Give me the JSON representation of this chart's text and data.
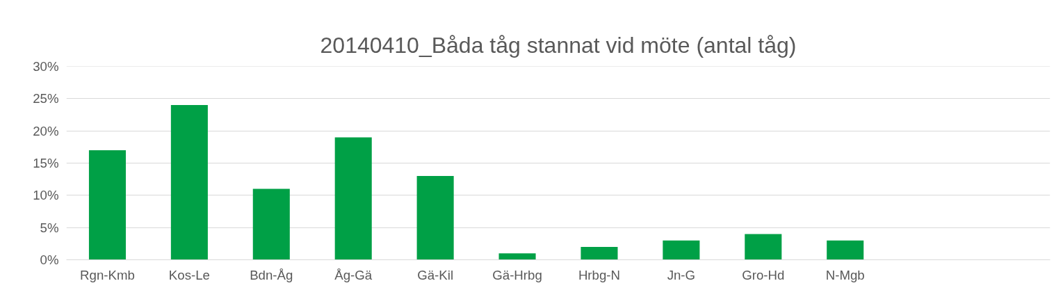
{
  "chart_data": {
    "type": "bar",
    "title": "20140410_Båda tåg stannat vid möte (antal tåg)",
    "categories": [
      "Rgn-Kmb",
      "Kos-Le",
      "Bdn-Åg",
      "Åg-Gä",
      "Gä-Kil",
      "Gä-Hrbg",
      "Hrbg-N",
      "Jn-G",
      "Gro-Hd",
      "N-Mgb",
      null,
      null
    ],
    "values": [
      17,
      24,
      11,
      19,
      13,
      1,
      2,
      3,
      4,
      3,
      null,
      null
    ],
    "color": "#00a046",
    "ylim": [
      0,
      30
    ],
    "yticks": [
      {
        "value": 0,
        "label": "0%"
      },
      {
        "value": 5,
        "label": "5%"
      },
      {
        "value": 10,
        "label": "10%"
      },
      {
        "value": 15,
        "label": "15%"
      },
      {
        "value": 20,
        "label": "20%"
      },
      {
        "value": 25,
        "label": "25%"
      },
      {
        "value": 30,
        "label": "30%"
      }
    ],
    "grid": "y"
  }
}
